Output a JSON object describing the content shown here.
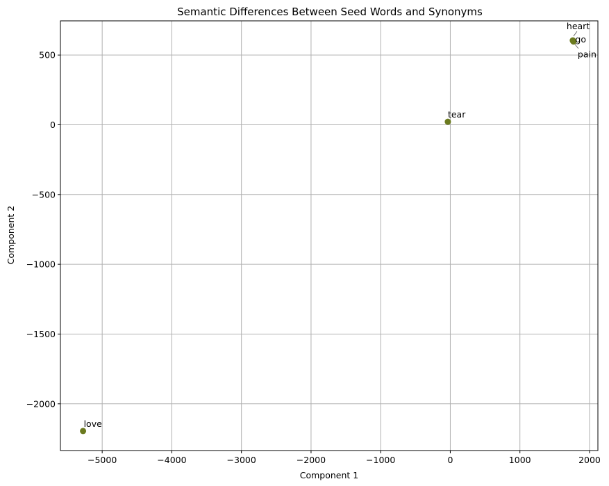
{
  "chart_data": {
    "type": "scatter",
    "title": "Semantic Differences Between Seed Words and Synonyms",
    "xlabel": "Component 1",
    "ylabel": "Component 2",
    "xlim": [
      -5600,
      2120
    ],
    "ylim": [
      -2335,
      745
    ],
    "xticks": [
      -5000,
      -4000,
      -3000,
      -2000,
      -1000,
      0,
      1000,
      2000
    ],
    "xtick_labels": [
      "−5000",
      "−4000",
      "−3000",
      "−2000",
      "−1000",
      "0",
      "1000",
      "2000"
    ],
    "yticks": [
      500,
      0,
      -500,
      -1000,
      -1500,
      -2000
    ],
    "ytick_labels": [
      "500",
      "0",
      "−500",
      "−1000",
      "−1500",
      "−2000"
    ],
    "grid": true,
    "marker_color": "#6b7a1f",
    "points": [
      {
        "label": "heart",
        "x": 1760,
        "y": 605
      },
      {
        "label": "go",
        "x": 1765,
        "y": 600
      },
      {
        "label": "pain",
        "x": 1770,
        "y": 597
      },
      {
        "label": "tear",
        "x": -35,
        "y": 22
      },
      {
        "label": "love",
        "x": -5275,
        "y": -2195
      }
    ]
  }
}
